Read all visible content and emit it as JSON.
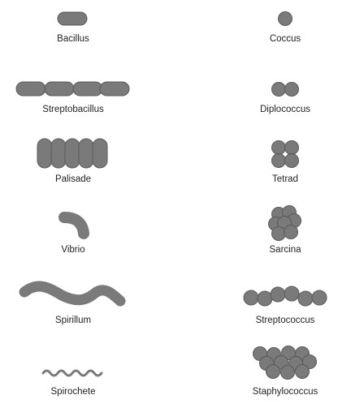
{
  "title": "",
  "items": [
    {
      "label": "Bacillus"
    },
    {
      "label": "Coccus"
    },
    {
      "label": "Streptobacillus"
    },
    {
      "label": "Diplococcus"
    },
    {
      "label": "Palisade"
    },
    {
      "label": "Tetrad"
    },
    {
      "label": "Vibrio"
    },
    {
      "label": "Sarcina"
    },
    {
      "label": "Spirillum"
    },
    {
      "label": "Streptococcus"
    },
    {
      "label": "Spirochete"
    },
    {
      "label": "Staphylococcus"
    }
  ],
  "colors": {
    "fill": "#7a7a7a",
    "outline": "#5a5a5a",
    "text": "#222222"
  }
}
